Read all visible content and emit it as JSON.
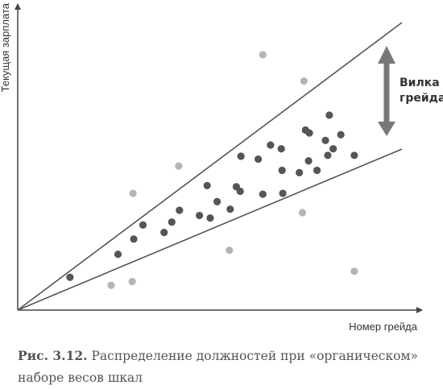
{
  "chart_data": {
    "type": "scatter",
    "xlabel": "Номер грейда",
    "ylabel": "Текущая зарплата",
    "xlim": [
      0,
      100
    ],
    "ylim": [
      0,
      100
    ],
    "grid": false,
    "axis_ticks": false,
    "annotation": {
      "lines": [
        "Вилка",
        "грейда"
      ],
      "arrow": "double-vertical"
    },
    "boundary_lines": [
      {
        "role": "upper",
        "from": [
          0,
          0
        ],
        "to": [
          100,
          100
        ]
      },
      {
        "role": "lower",
        "from": [
          0,
          0
        ],
        "to": [
          100,
          56
        ]
      }
    ],
    "series": [
      {
        "role": "inside",
        "color": "#555555",
        "points": [
          [
            13.6,
            11.4
          ],
          [
            26.1,
            19.4
          ],
          [
            30.2,
            24.7
          ],
          [
            32.6,
            29.6
          ],
          [
            38.1,
            27.0
          ],
          [
            40.1,
            30.6
          ],
          [
            42.1,
            34.7
          ],
          [
            47.3,
            32.9
          ],
          [
            49.3,
            43.3
          ],
          [
            50.1,
            32.0
          ],
          [
            51.9,
            37.7
          ],
          [
            55.3,
            35.1
          ],
          [
            56.9,
            42.9
          ],
          [
            57.9,
            41.3
          ],
          [
            58.1,
            53.5
          ],
          [
            62.6,
            52.5
          ],
          [
            63.8,
            40.3
          ],
          [
            65.8,
            57.4
          ],
          [
            68.6,
            56.1
          ],
          [
            68.8,
            48.6
          ],
          [
            69.0,
            40.6
          ],
          [
            73.3,
            47.8
          ],
          [
            74.9,
            62.6
          ],
          [
            75.7,
            51.9
          ],
          [
            75.9,
            61.6
          ],
          [
            77.9,
            48.6
          ],
          [
            80.1,
            59.0
          ],
          [
            80.7,
            53.8
          ],
          [
            81.1,
            67.8
          ],
          [
            82.1,
            56.1
          ],
          [
            84.1,
            61.0
          ],
          [
            87.6,
            53.8
          ]
        ]
      },
      {
        "role": "outside",
        "color": "#b5b5b5",
        "points": [
          [
            63.8,
            88.8
          ],
          [
            74.5,
            79.7
          ],
          [
            41.9,
            50.1
          ],
          [
            30.0,
            40.6
          ],
          [
            74.1,
            33.9
          ],
          [
            55.1,
            20.8
          ],
          [
            29.8,
            9.9
          ],
          [
            24.3,
            8.6
          ],
          [
            87.6,
            13.5
          ]
        ]
      }
    ]
  },
  "caption": {
    "label": "Рис. 3.12.",
    "text": "Распределение должностей при «органическом» наборе весов шкал"
  }
}
